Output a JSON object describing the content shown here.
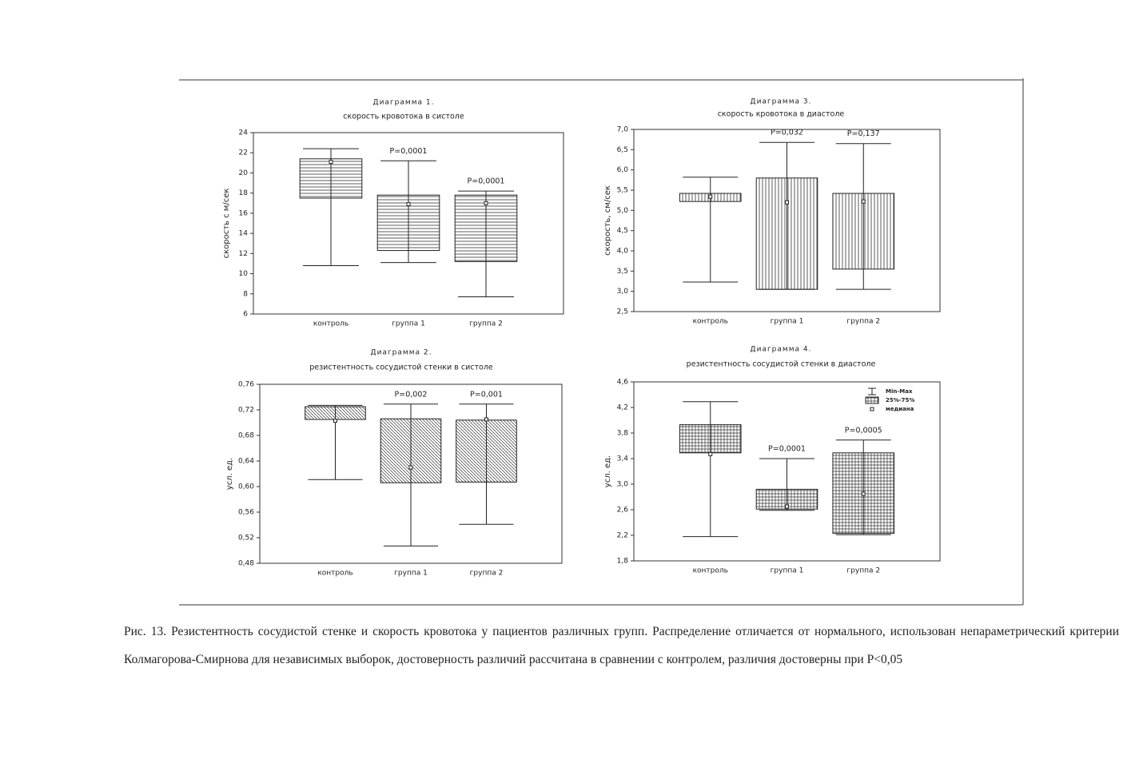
{
  "chart_data": [
    {
      "type": "box",
      "title": "Диаграмма 1.",
      "subtitle": "скорость кровотока в систоле",
      "ylabel": "скорость с м/сек",
      "categories": [
        "контроль",
        "группа 1",
        "группа 2"
      ],
      "min": [
        10.8,
        11.1,
        7.7
      ],
      "q1": [
        17.5,
        12.3,
        11.2
      ],
      "median": [
        21.1,
        16.9,
        17.0
      ],
      "q3": [
        21.4,
        17.8,
        17.8
      ],
      "max": [
        22.4,
        21.2,
        18.2
      ],
      "annotations": [
        null,
        "P=0,0001",
        "P=0,0001"
      ],
      "pattern": "horizontal",
      "ylim": [
        6,
        24
      ],
      "yticks": [
        6,
        8,
        10,
        12,
        14,
        16,
        18,
        20,
        22,
        24
      ]
    },
    {
      "type": "box",
      "title": "Диаграмма 2.",
      "subtitle": "резистентность сосудистой стенки в систоле",
      "ylabel": "усл. ед.",
      "categories": [
        "контроль",
        "группа 1",
        "группа 2"
      ],
      "min": [
        0.611,
        0.507,
        0.541
      ],
      "q1": [
        0.705,
        0.606,
        0.607
      ],
      "median": [
        0.703,
        0.63,
        0.705
      ],
      "q3": [
        0.725,
        0.706,
        0.704
      ],
      "max": [
        0.727,
        0.729,
        0.729
      ],
      "annotations": [
        null,
        "P=0,002",
        "P=0,001"
      ],
      "pattern": "diagonal",
      "ylim": [
        0.48,
        0.76
      ],
      "yticks": [
        {
          "value": 0.48,
          "label": "0,48"
        },
        {
          "value": 0.52,
          "label": "0,52"
        },
        {
          "value": 0.56,
          "label": "0,56"
        },
        {
          "value": 0.6,
          "label": "0,60"
        },
        {
          "value": 0.64,
          "label": "0,64"
        },
        {
          "value": 0.68,
          "label": "0,68"
        },
        {
          "value": 0.72,
          "label": "0,72"
        },
        {
          "value": 0.76,
          "label": "0,76"
        }
      ]
    },
    {
      "type": "box",
      "title": "Диаграмма 3.",
      "subtitle": "скорость кровотока в диастоле",
      "ylabel": "скорость, см/сек",
      "categories": [
        "контроль",
        "группа 1",
        "группа 2"
      ],
      "min": [
        3.23,
        3.05,
        3.05
      ],
      "q1": [
        5.22,
        3.05,
        3.55
      ],
      "median": [
        5.34,
        5.2,
        5.22
      ],
      "q3": [
        5.42,
        5.8,
        5.42
      ],
      "max": [
        5.82,
        6.68,
        6.65
      ],
      "annotations": [
        null,
        "P=0,032",
        "P=0,137"
      ],
      "pattern": "vertical",
      "ylim": [
        2.5,
        7.0
      ],
      "yticks": [
        {
          "value": 2.5,
          "label": "2,5"
        },
        {
          "value": 3.0,
          "label": "3,0"
        },
        {
          "value": 3.5,
          "label": "3,5"
        },
        {
          "value": 4.0,
          "label": "4,0"
        },
        {
          "value": 4.5,
          "label": "4,5"
        },
        {
          "value": 5.0,
          "label": "5,0"
        },
        {
          "value": 5.5,
          "label": "5,5"
        },
        {
          "value": 6.0,
          "label": "6,0"
        },
        {
          "value": 6.5,
          "label": "6,5"
        },
        {
          "value": 7.0,
          "label": "7,0"
        }
      ]
    },
    {
      "type": "box",
      "title": "Диаграмма 4.",
      "subtitle": "резистентность сосудистой стенки в диастоле",
      "ylabel": "усл. ед.",
      "categories": [
        "контроль",
        "группа 1",
        "группа 2"
      ],
      "min": [
        2.18,
        2.59,
        2.21
      ],
      "q1": [
        3.49,
        2.61,
        2.23
      ],
      "median": [
        3.47,
        2.65,
        2.85
      ],
      "q3": [
        3.93,
        2.92,
        3.49
      ],
      "max": [
        4.29,
        3.4,
        3.69
      ],
      "annotations": [
        null,
        "P=0,0001",
        "P=0,0005"
      ],
      "pattern": "grid",
      "legend": [
        "Min-Max",
        "25%-75%",
        "медиана"
      ],
      "legend_position": "upper right",
      "ylim": [
        1.8,
        4.6
      ],
      "yticks": [
        {
          "value": 1.8,
          "label": "1,8"
        },
        {
          "value": 2.2,
          "label": "2,2"
        },
        {
          "value": 2.6,
          "label": "2,6"
        },
        {
          "value": 3.0,
          "label": "3,0"
        },
        {
          "value": 3.4,
          "label": "3,4"
        },
        {
          "value": 3.8,
          "label": "3,8"
        },
        {
          "value": 4.2,
          "label": "4,2"
        },
        {
          "value": 4.6,
          "label": "4,6"
        }
      ]
    }
  ],
  "caption": "Рис. 13. Резистентность сосудистой стенке и скорость кровотока у пациентов различных групп. Распределение отличается от нормального, использован непараметрический критерии Колмагорова-Смирнова для независимых выборок, достоверность различий рассчитана в сравнении с контролем, различия достоверны при P<0,05"
}
